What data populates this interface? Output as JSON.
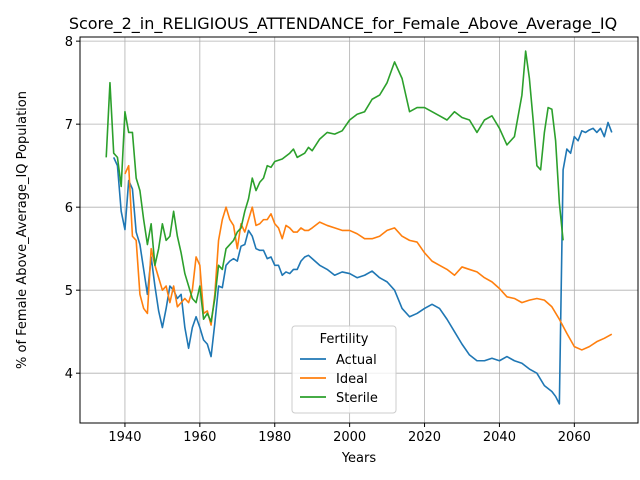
{
  "chart_data": {
    "type": "line",
    "title": "Score_2_in_RELIGIOUS_ATTENDANCE_for_Female_Above_Average_IQ",
    "xlabel": "Years",
    "ylabel": "% of Female Above_Average_IQ Population",
    "xlim": [
      1928,
      2077
    ],
    "ylim": [
      3.4,
      8.05
    ],
    "xticks": [
      1940,
      1960,
      1980,
      2000,
      2020,
      2040,
      2060
    ],
    "yticks": [
      4,
      5,
      6,
      7,
      8
    ],
    "grid": true,
    "legend": {
      "title": "Fertility",
      "position": "lower-center"
    },
    "colors": {
      "Actual": "#1f77b4",
      "Ideal": "#ff7f0e",
      "Sterile": "#2ca02c"
    },
    "series": [
      {
        "name": "Actual",
        "x": [
          1937,
          1938,
          1939,
          1940,
          1941,
          1942,
          1943,
          1944,
          1945,
          1946,
          1947,
          1948,
          1949,
          1950,
          1951,
          1952,
          1953,
          1954,
          1955,
          1956,
          1957,
          1958,
          1959,
          1960,
          1961,
          1962,
          1963,
          1964,
          1965,
          1966,
          1967,
          1968,
          1969,
          1970,
          1971,
          1972,
          1973,
          1974,
          1975,
          1976,
          1977,
          1978,
          1979,
          1980,
          1981,
          1982,
          1983,
          1984,
          1985,
          1986,
          1987,
          1988,
          1989,
          1990,
          1992,
          1994,
          1996,
          1998,
          2000,
          2002,
          2004,
          2006,
          2008,
          2010,
          2012,
          2014,
          2016,
          2018,
          2020,
          2022,
          2024,
          2026,
          2028,
          2030,
          2032,
          2034,
          2036,
          2038,
          2040,
          2042,
          2044,
          2046,
          2048,
          2050,
          2052,
          2054,
          2055,
          2056,
          2057,
          2058,
          2059,
          2060,
          2061,
          2062,
          2063,
          2064,
          2065,
          2066,
          2067,
          2068,
          2069,
          2070
        ],
        "values": [
          6.6,
          6.5,
          5.95,
          5.73,
          6.32,
          6.22,
          5.7,
          5.55,
          5.25,
          4.95,
          5.4,
          5.05,
          4.75,
          4.55,
          4.78,
          5.05,
          5.0,
          4.9,
          4.95,
          4.55,
          4.3,
          4.55,
          4.68,
          4.55,
          4.4,
          4.35,
          4.2,
          4.6,
          5.05,
          5.03,
          5.3,
          5.35,
          5.38,
          5.35,
          5.53,
          5.55,
          5.72,
          5.65,
          5.5,
          5.48,
          5.48,
          5.38,
          5.4,
          5.3,
          5.3,
          5.18,
          5.22,
          5.2,
          5.25,
          5.25,
          5.35,
          5.4,
          5.42,
          5.38,
          5.3,
          5.25,
          5.18,
          5.22,
          5.2,
          5.15,
          5.18,
          5.23,
          5.15,
          5.1,
          5.0,
          4.78,
          4.68,
          4.72,
          4.78,
          4.83,
          4.78,
          4.65,
          4.5,
          4.35,
          4.22,
          4.15,
          4.15,
          4.18,
          4.15,
          4.2,
          4.15,
          4.12,
          4.05,
          4.0,
          3.85,
          3.78,
          3.72,
          3.63,
          6.45,
          6.7,
          6.65,
          6.85,
          6.8,
          6.92,
          6.9,
          6.93,
          6.95,
          6.9,
          6.95,
          6.85,
          7.02,
          6.9
        ]
      },
      {
        "name": "Ideal",
        "x": [
          1940,
          1941,
          1942,
          1943,
          1944,
          1945,
          1946,
          1947,
          1948,
          1949,
          1950,
          1951,
          1952,
          1953,
          1954,
          1955,
          1956,
          1957,
          1958,
          1959,
          1960,
          1961,
          1962,
          1963,
          1964,
          1965,
          1966,
          1967,
          1968,
          1969,
          1970,
          1971,
          1972,
          1973,
          1974,
          1975,
          1976,
          1977,
          1978,
          1979,
          1980,
          1981,
          1982,
          1983,
          1984,
          1985,
          1986,
          1987,
          1988,
          1989,
          1990,
          1992,
          1994,
          1996,
          1998,
          2000,
          2002,
          2004,
          2006,
          2008,
          2010,
          2012,
          2014,
          2016,
          2018,
          2020,
          2022,
          2024,
          2026,
          2028,
          2030,
          2032,
          2034,
          2036,
          2038,
          2040,
          2042,
          2044,
          2046,
          2048,
          2050,
          2052,
          2054,
          2056,
          2058,
          2060,
          2062,
          2064,
          2066,
          2068,
          2070
        ],
        "values": [
          6.4,
          6.5,
          5.65,
          5.6,
          4.95,
          4.78,
          4.72,
          5.5,
          5.3,
          5.15,
          5.0,
          5.05,
          4.85,
          5.05,
          4.8,
          4.85,
          4.9,
          4.85,
          5.0,
          5.4,
          5.3,
          4.72,
          4.75,
          4.58,
          4.95,
          5.6,
          5.85,
          6.0,
          5.85,
          5.78,
          5.5,
          5.8,
          5.7,
          5.85,
          6.0,
          5.78,
          5.8,
          5.85,
          5.85,
          5.92,
          5.8,
          5.75,
          5.62,
          5.78,
          5.75,
          5.7,
          5.7,
          5.75,
          5.72,
          5.72,
          5.75,
          5.82,
          5.78,
          5.75,
          5.72,
          5.72,
          5.68,
          5.62,
          5.62,
          5.65,
          5.72,
          5.75,
          5.65,
          5.6,
          5.58,
          5.45,
          5.35,
          5.3,
          5.25,
          5.18,
          5.28,
          5.25,
          5.22,
          5.15,
          5.1,
          5.02,
          4.92,
          4.9,
          4.85,
          4.88,
          4.9,
          4.88,
          4.8,
          4.65,
          4.48,
          4.32,
          4.28,
          4.32,
          4.38,
          4.42,
          4.47
        ]
      },
      {
        "name": "Sterile",
        "x": [
          1935,
          1936,
          1937,
          1938,
          1939,
          1940,
          1941,
          1942,
          1943,
          1944,
          1945,
          1946,
          1947,
          1948,
          1949,
          1950,
          1951,
          1952,
          1953,
          1954,
          1955,
          1956,
          1957,
          1958,
          1959,
          1960,
          1961,
          1962,
          1963,
          1964,
          1965,
          1966,
          1967,
          1968,
          1969,
          1970,
          1971,
          1972,
          1973,
          1974,
          1975,
          1976,
          1977,
          1978,
          1979,
          1980,
          1982,
          1984,
          1985,
          1986,
          1988,
          1989,
          1990,
          1992,
          1994,
          1996,
          1998,
          2000,
          2002,
          2004,
          2006,
          2008,
          2010,
          2012,
          2014,
          2016,
          2018,
          2020,
          2022,
          2024,
          2026,
          2028,
          2030,
          2032,
          2034,
          2036,
          2038,
          2040,
          2042,
          2044,
          2046,
          2047,
          2048,
          2049,
          2050,
          2051,
          2052,
          2053,
          2054,
          2055,
          2056,
          2057
        ],
        "values": [
          6.6,
          7.5,
          6.65,
          6.6,
          6.25,
          7.15,
          6.9,
          6.9,
          6.35,
          6.2,
          5.85,
          5.55,
          5.8,
          5.3,
          5.5,
          5.8,
          5.6,
          5.65,
          5.95,
          5.65,
          5.45,
          5.2,
          5.05,
          4.9,
          4.85,
          5.05,
          4.65,
          4.72,
          4.62,
          4.9,
          5.3,
          5.25,
          5.5,
          5.55,
          5.6,
          5.7,
          5.75,
          5.95,
          6.1,
          6.35,
          6.2,
          6.3,
          6.35,
          6.5,
          6.48,
          6.55,
          6.58,
          6.65,
          6.7,
          6.6,
          6.65,
          6.72,
          6.68,
          6.82,
          6.9,
          6.88,
          6.92,
          7.05,
          7.12,
          7.15,
          7.3,
          7.35,
          7.5,
          7.75,
          7.55,
          7.15,
          7.2,
          7.2,
          7.15,
          7.1,
          7.05,
          7.15,
          7.08,
          7.05,
          6.9,
          7.05,
          7.1,
          6.95,
          6.75,
          6.85,
          7.35,
          7.88,
          7.55,
          7.05,
          6.5,
          6.45,
          6.9,
          7.2,
          7.18,
          6.8,
          6.05,
          5.6
        ]
      }
    ]
  }
}
